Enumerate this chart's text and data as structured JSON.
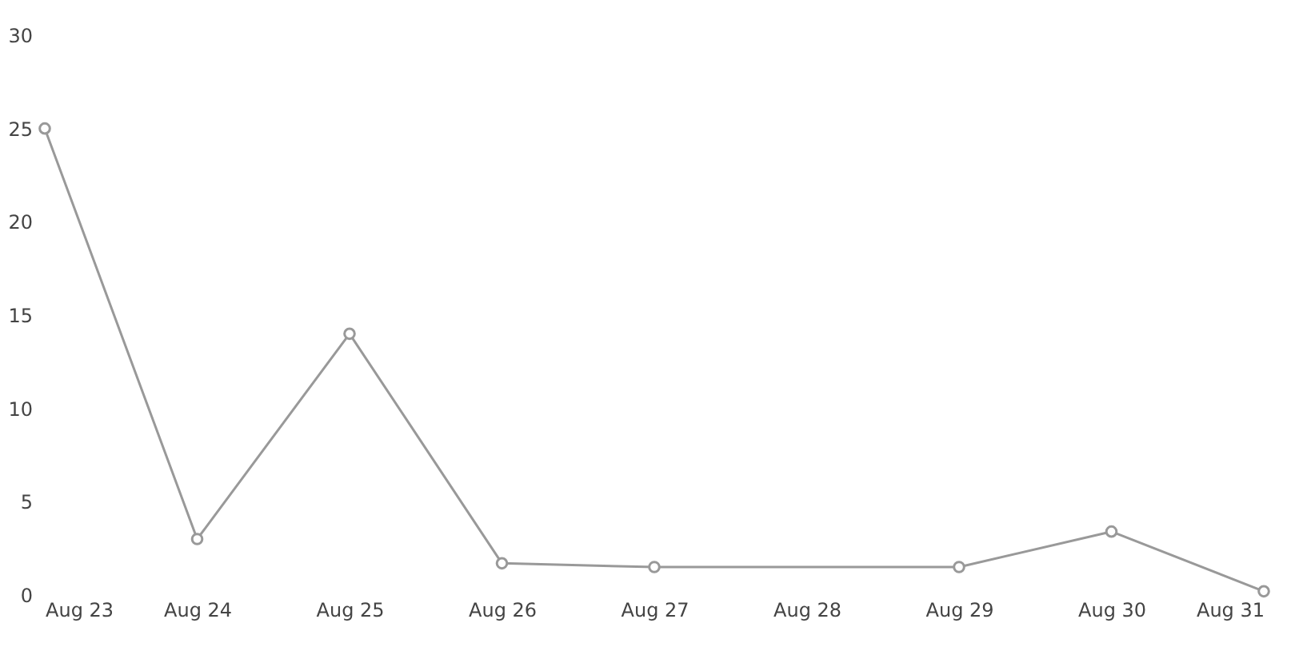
{
  "chart_data": {
    "type": "line",
    "x": [
      "--08-23",
      "--08-24",
      "--08-25",
      "--08-26",
      "--08-27",
      "--08-29",
      "--08-30",
      "--08-31"
    ],
    "series": [
      {
        "color": "#999999",
        "values": [
          25,
          3,
          14,
          1.7,
          1.5,
          1.5,
          3.4,
          0.2
        ]
      }
    ],
    "xlim": [
      "--08-23",
      "--08-31"
    ],
    "xticks": [
      {
        "value": "--08-23",
        "label": "Aug 23"
      },
      {
        "value": "--08-24",
        "label": "Aug 24"
      },
      {
        "value": "--08-25",
        "label": "Aug 25"
      },
      {
        "value": "--08-26",
        "label": "Aug 26"
      },
      {
        "value": "--08-27",
        "label": "Aug 27"
      },
      {
        "value": "--08-28",
        "label": "Aug 28"
      },
      {
        "value": "--08-29",
        "label": "Aug 29"
      },
      {
        "value": "--08-30",
        "label": "Aug 30"
      },
      {
        "value": "--08-31",
        "label": "Aug 31"
      }
    ],
    "ylim": [
      0,
      30
    ],
    "yticks": [
      0,
      5,
      10,
      15,
      20,
      25,
      30
    ],
    "grid": false,
    "marker": "circle",
    "line_style": "solid"
  }
}
